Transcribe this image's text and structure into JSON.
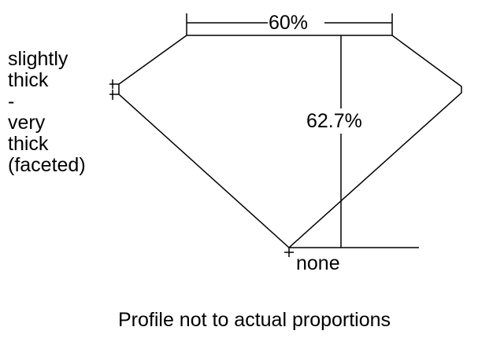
{
  "labels": {
    "table": "60%",
    "depth": "62.7%",
    "culet": "none",
    "girdle_lines": [
      "slightly",
      "thick",
      "-",
      "very",
      "thick",
      "(faceted)"
    ],
    "caption": "Profile not to actual proportions"
  },
  "colors": {
    "line": "#000000",
    "background": "#ffffff"
  }
}
